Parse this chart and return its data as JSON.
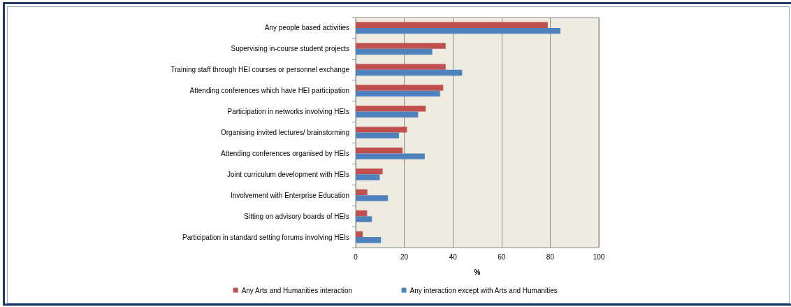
{
  "chart_data": {
    "type": "bar",
    "orientation": "horizontal",
    "categories": [
      "Any people based activities",
      "Supervising in-course student projects",
      "Training staff through HEI courses or personnel exchange",
      "Attending conferences which have HEI participation",
      "Participation in networks involving HEIs",
      "Organising invited lectures/ brainstorming",
      "Attending conferences organised by HEIs",
      "Joint curriculum development with HEIs",
      "Involvement with Enterprise Education",
      "Sitting on advisory boards of HEIs",
      "Participation in standard setting forums involving HEIs"
    ],
    "series": [
      {
        "name": "Any Arts and Humanities interaction",
        "color": "#c0504d",
        "values": [
          79,
          37,
          37,
          36,
          28.8,
          21.1,
          19.3,
          11.1,
          4.8,
          4.7,
          2.9
        ]
      },
      {
        "name": "Any interaction except with Arts and Humanities",
        "color": "#4f81bd",
        "values": [
          84.2,
          31.5,
          43.8,
          34.7,
          25.7,
          17.8,
          28.4,
          9.9,
          13.3,
          6.7,
          10.4
        ]
      }
    ],
    "xlabel": "%",
    "xlim": [
      0,
      100
    ],
    "xticks": [
      0,
      20,
      40,
      60,
      80,
      100
    ],
    "grid": "x",
    "legend": "bottom"
  }
}
